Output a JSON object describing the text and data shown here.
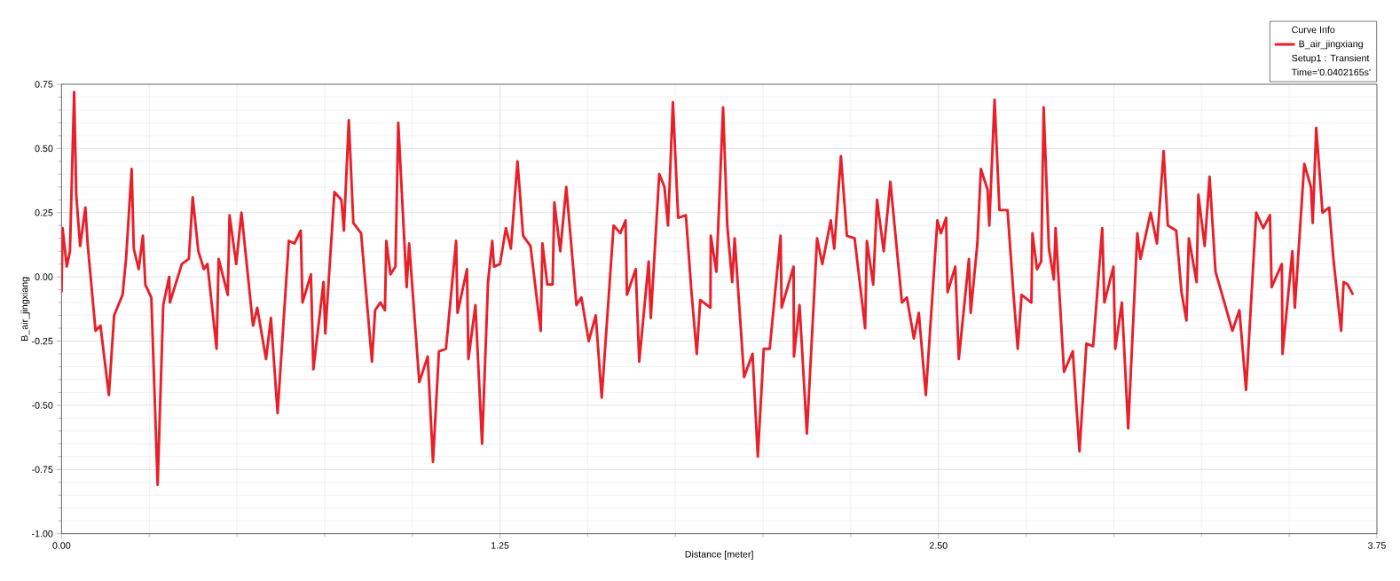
{
  "chart_data": {
    "type": "line",
    "xlabel": "Distance [meter]",
    "ylabel": "B_air_jingxiang",
    "legend_title": "Curve Info",
    "annotations": [
      "Setup1 : Transient",
      "Time='0.0402165s'"
    ],
    "xlim": [
      0,
      3.75
    ],
    "ylim": [
      -1,
      0.75
    ],
    "xticks": [
      {
        "value": 0,
        "label": "0.00"
      },
      1.25,
      {
        "value": 2.5,
        "label": "2.50"
      },
      3.75
    ],
    "yticks": [
      {
        "value": -1,
        "label": "-1.00"
      },
      -0.75,
      {
        "value": -0.5,
        "label": "-0.50"
      },
      -0.25,
      {
        "value": 0,
        "label": "0.00"
      },
      0.25,
      {
        "value": 0.5,
        "label": "0.50"
      },
      0.75
    ],
    "grid": true,
    "legend": "top right",
    "marker": "none",
    "line_style": "solid",
    "series": [
      {
        "name": "B_air_jingxiang",
        "color": "#e8202a",
        "x": [
          0,
          0.003,
          0.015,
          0.024,
          0.036,
          0.042,
          0.053,
          0.068,
          0.075,
          0.097,
          0.111,
          0.135,
          0.15,
          0.174,
          0.184,
          0.2,
          0.206,
          0.22,
          0.232,
          0.239,
          0.256,
          0.274,
          0.29,
          0.307,
          0.309,
          0.343,
          0.363,
          0.374,
          0.39,
          0.406,
          0.416,
          0.442,
          0.448,
          0.474,
          0.479,
          0.498,
          0.513,
          0.546,
          0.558,
          0.583,
          0.597,
          0.616,
          0.648,
          0.664,
          0.682,
          0.687,
          0.711,
          0.718,
          0.747,
          0.752,
          0.778,
          0.798,
          0.805,
          0.819,
          0.832,
          0.854,
          0.885,
          0.894,
          0.909,
          0.922,
          0.926,
          0.938,
          0.952,
          0.96,
          0.984,
          0.991,
          1.02,
          1.044,
          1.059,
          1.076,
          1.096,
          1.125,
          1.129,
          1.156,
          1.16,
          1.18,
          1.199,
          1.216,
          1.228,
          1.233,
          1.25,
          1.267,
          1.281,
          1.3,
          1.316,
          1.337,
          1.366,
          1.371,
          1.385,
          1.4,
          1.405,
          1.422,
          1.439,
          1.468,
          1.482,
          1.503,
          1.523,
          1.54,
          1.574,
          1.593,
          1.608,
          1.612,
          1.637,
          1.647,
          1.674,
          1.68,
          1.704,
          1.719,
          1.729,
          1.743,
          1.758,
          1.78,
          1.796,
          1.811,
          1.821,
          1.85,
          1.851,
          1.867,
          1.886,
          1.898,
          1.912,
          1.919,
          1.946,
          1.97,
          1.985,
          2.002,
          2.019,
          2.05,
          2.053,
          2.087,
          2.088,
          2.104,
          2.125,
          2.154,
          2.169,
          2.193,
          2.203,
          2.222,
          2.239,
          2.261,
          2.291,
          2.296,
          2.314,
          2.325,
          2.344,
          2.363,
          2.396,
          2.41,
          2.43,
          2.444,
          2.464,
          2.497,
          2.507,
          2.522,
          2.526,
          2.548,
          2.558,
          2.587,
          2.592,
          2.611,
          2.621,
          2.64,
          2.645,
          2.66,
          2.674,
          2.697,
          2.713,
          2.726,
          2.737,
          2.765,
          2.768,
          2.781,
          2.793,
          2.8,
          2.815,
          2.829,
          2.834,
          2.858,
          2.883,
          2.902,
          2.922,
          2.941,
          2.967,
          2.973,
          2.999,
          3.004,
          3.023,
          3.041,
          3.067,
          3.076,
          3.105,
          3.123,
          3.142,
          3.154,
          3.178,
          3.193,
          3.207,
          3.214,
          3.236,
          3.241,
          3.259,
          3.273,
          3.29,
          3.309,
          3.338,
          3.358,
          3.377,
          3.406,
          3.426,
          3.445,
          3.45,
          3.479,
          3.481,
          3.509,
          3.516,
          3.543,
          3.562,
          3.567,
          3.577,
          3.595,
          3.614,
          3.626,
          3.648,
          3.655,
          3.667,
          3.682
        ],
        "values": [
          -0.06,
          0.19,
          0.04,
          0.1,
          0.72,
          0.32,
          0.12,
          0.27,
          0.12,
          -0.21,
          -0.19,
          -0.46,
          -0.15,
          -0.07,
          0.07,
          0.42,
          0.11,
          0.03,
          0.16,
          -0.03,
          -0.08,
          -0.81,
          -0.11,
          0.0,
          -0.1,
          0.05,
          0.07,
          0.31,
          0.1,
          0.03,
          0.05,
          -0.28,
          0.07,
          -0.07,
          0.24,
          0.05,
          0.25,
          -0.19,
          -0.12,
          -0.32,
          -0.16,
          -0.53,
          0.14,
          0.13,
          0.18,
          -0.1,
          0.01,
          -0.36,
          -0.02,
          -0.22,
          0.33,
          0.3,
          0.18,
          0.61,
          0.21,
          0.17,
          -0.33,
          -0.13,
          -0.1,
          -0.13,
          0.14,
          0.01,
          0.04,
          0.6,
          -0.04,
          0.13,
          -0.41,
          -0.31,
          -0.72,
          -0.29,
          -0.28,
          0.14,
          -0.14,
          0.03,
          -0.32,
          -0.11,
          -0.65,
          -0.02,
          0.14,
          0.04,
          0.05,
          0.19,
          0.11,
          0.45,
          0.16,
          0.12,
          -0.21,
          0.13,
          -0.03,
          -0.03,
          0.29,
          0.1,
          0.35,
          -0.11,
          -0.08,
          -0.25,
          -0.15,
          -0.47,
          0.2,
          0.17,
          0.22,
          -0.07,
          0.03,
          -0.33,
          0.06,
          -0.16,
          0.4,
          0.35,
          0.2,
          0.68,
          0.23,
          0.24,
          -0.06,
          -0.3,
          -0.09,
          -0.12,
          0.16,
          0.02,
          0.66,
          0.2,
          -0.02,
          0.15,
          -0.39,
          -0.3,
          -0.7,
          -0.28,
          -0.28,
          0.16,
          -0.12,
          0.04,
          -0.31,
          -0.11,
          -0.61,
          0.15,
          0.05,
          0.22,
          0.11,
          0.47,
          0.16,
          0.15,
          -0.2,
          0.14,
          -0.03,
          0.3,
          0.1,
          0.37,
          -0.1,
          -0.08,
          -0.24,
          -0.14,
          -0.46,
          0.22,
          0.17,
          0.23,
          -0.06,
          0.04,
          -0.32,
          0.07,
          -0.14,
          0.13,
          0.42,
          0.34,
          0.2,
          0.69,
          0.26,
          0.26,
          -0.05,
          -0.28,
          -0.07,
          -0.1,
          0.17,
          0.03,
          0.06,
          0.66,
          0.11,
          -0.01,
          0.19,
          -0.37,
          -0.29,
          -0.68,
          -0.26,
          -0.27,
          0.19,
          -0.1,
          0.04,
          -0.28,
          -0.1,
          -0.59,
          0.17,
          0.07,
          0.25,
          0.13,
          0.49,
          0.2,
          0.18,
          -0.06,
          -0.17,
          0.15,
          -0.02,
          0.32,
          0.12,
          0.39,
          0.02,
          -0.07,
          -0.21,
          -0.13,
          -0.44,
          0.25,
          0.19,
          0.24,
          -0.04,
          0.05,
          -0.3,
          0.1,
          -0.12,
          0.44,
          0.35,
          0.21,
          0.58,
          0.25,
          0.27,
          0.07,
          -0.21,
          -0.02,
          -0.03,
          -0.07
        ]
      }
    ]
  }
}
